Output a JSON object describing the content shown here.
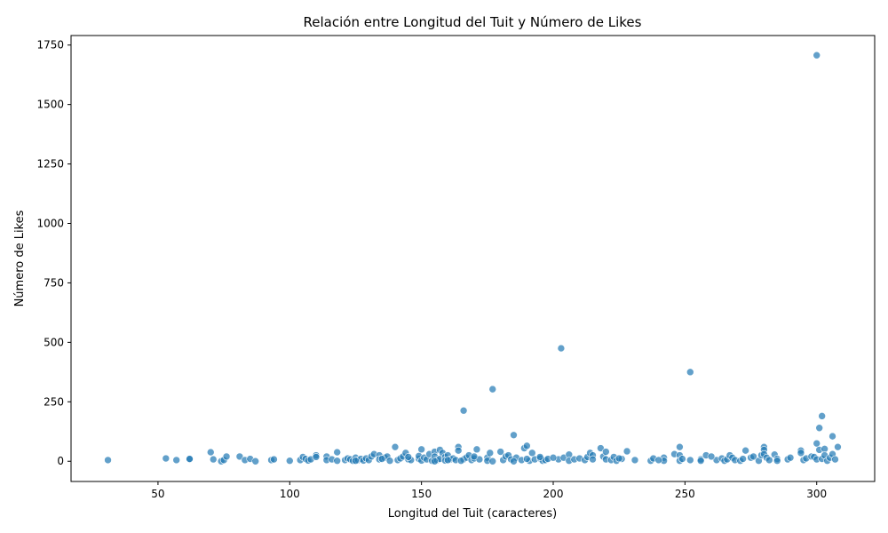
{
  "chart_data": {
    "type": "scatter",
    "title": "Relación entre Longitud del Tuit y Número de Likes",
    "xlabel": "Longitud del Tuit (caracteres)",
    "ylabel": "Número de Likes",
    "xlim": [
      17,
      322
    ],
    "ylim": [
      -85,
      1790
    ],
    "xticks": [
      50,
      100,
      150,
      200,
      250,
      300
    ],
    "yticks": [
      0,
      250,
      500,
      750,
      1000,
      1250,
      1500,
      1750
    ],
    "xtick_labels": [
      "50",
      "100",
      "150",
      "200",
      "250",
      "300"
    ],
    "ytick_labels": [
      "0",
      "250",
      "500",
      "750",
      "1000",
      "1250",
      "1500",
      "1750"
    ],
    "grid": false,
    "legend": false,
    "marker_color": "#1f77b4",
    "points": [
      [
        31,
        5
      ],
      [
        53,
        12
      ],
      [
        57,
        5
      ],
      [
        62,
        8
      ],
      [
        62,
        10
      ],
      [
        70,
        38
      ],
      [
        71,
        8
      ],
      [
        74,
        0
      ],
      [
        75,
        5
      ],
      [
        76,
        20
      ],
      [
        81,
        20
      ],
      [
        83,
        5
      ],
      [
        85,
        10
      ],
      [
        87,
        0
      ],
      [
        93,
        5
      ],
      [
        94,
        8
      ],
      [
        100,
        2
      ],
      [
        104,
        5
      ],
      [
        105,
        18
      ],
      [
        106,
        10
      ],
      [
        107,
        3
      ],
      [
        108,
        8
      ],
      [
        110,
        25
      ],
      [
        110,
        18
      ],
      [
        114,
        20
      ],
      [
        114,
        5
      ],
      [
        116,
        8
      ],
      [
        118,
        38
      ],
      [
        118,
        2
      ],
      [
        121,
        5
      ],
      [
        122,
        12
      ],
      [
        123,
        8
      ],
      [
        124,
        2
      ],
      [
        125,
        15
      ],
      [
        126,
        5
      ],
      [
        127,
        10
      ],
      [
        128,
        3
      ],
      [
        129,
        12
      ],
      [
        130,
        5
      ],
      [
        131,
        20
      ],
      [
        132,
        30
      ],
      [
        134,
        25
      ],
      [
        134,
        8
      ],
      [
        136,
        15
      ],
      [
        137,
        20
      ],
      [
        138,
        2
      ],
      [
        140,
        60
      ],
      [
        141,
        5
      ],
      [
        142,
        12
      ],
      [
        143,
        20
      ],
      [
        144,
        35
      ],
      [
        145,
        8
      ],
      [
        146,
        5
      ],
      [
        149,
        10
      ],
      [
        149,
        22
      ],
      [
        150,
        50
      ],
      [
        150,
        3
      ],
      [
        151,
        15
      ],
      [
        152,
        8
      ],
      [
        153,
        30
      ],
      [
        154,
        2
      ],
      [
        155,
        40
      ],
      [
        155,
        20
      ],
      [
        156,
        5
      ],
      [
        157,
        48
      ],
      [
        157,
        10
      ],
      [
        158,
        35
      ],
      [
        159,
        18
      ],
      [
        159,
        3
      ],
      [
        160,
        25
      ],
      [
        161,
        8
      ],
      [
        162,
        12
      ],
      [
        163,
        5
      ],
      [
        164,
        60
      ],
      [
        164,
        45
      ],
      [
        166,
        213
      ],
      [
        166,
        8
      ],
      [
        167,
        15
      ],
      [
        168,
        25
      ],
      [
        169,
        5
      ],
      [
        170,
        12
      ],
      [
        171,
        50
      ],
      [
        172,
        8
      ],
      [
        175,
        15
      ],
      [
        175,
        2
      ],
      [
        176,
        35
      ],
      [
        177,
        303
      ],
      [
        177,
        0
      ],
      [
        180,
        40
      ],
      [
        181,
        5
      ],
      [
        182,
        20
      ],
      [
        183,
        25
      ],
      [
        184,
        8
      ],
      [
        185,
        110
      ],
      [
        186,
        15
      ],
      [
        188,
        5
      ],
      [
        189,
        55
      ],
      [
        190,
        65
      ],
      [
        191,
        2
      ],
      [
        192,
        35
      ],
      [
        193,
        8
      ],
      [
        195,
        12
      ],
      [
        196,
        2
      ],
      [
        197,
        5
      ],
      [
        198,
        10
      ],
      [
        202,
        8
      ],
      [
        203,
        475
      ],
      [
        204,
        15
      ],
      [
        206,
        28
      ],
      [
        206,
        2
      ],
      [
        208,
        8
      ],
      [
        210,
        12
      ],
      [
        212,
        5
      ],
      [
        213,
        18
      ],
      [
        214,
        35
      ],
      [
        215,
        25
      ],
      [
        218,
        55
      ],
      [
        219,
        20
      ],
      [
        220,
        40
      ],
      [
        220,
        8
      ],
      [
        222,
        5
      ],
      [
        223,
        18
      ],
      [
        224,
        2
      ],
      [
        226,
        10
      ],
      [
        228,
        42
      ],
      [
        231,
        5
      ],
      [
        237,
        2
      ],
      [
        238,
        12
      ],
      [
        242,
        15
      ],
      [
        242,
        2
      ],
      [
        246,
        30
      ],
      [
        248,
        60
      ],
      [
        248,
        25
      ],
      [
        248,
        2
      ],
      [
        249,
        10
      ],
      [
        252,
        375
      ],
      [
        252,
        5
      ],
      [
        256,
        8
      ],
      [
        256,
        2
      ],
      [
        258,
        25
      ],
      [
        262,
        5
      ],
      [
        264,
        12
      ],
      [
        265,
        2
      ],
      [
        266,
        8
      ],
      [
        267,
        25
      ],
      [
        268,
        15
      ],
      [
        269,
        5
      ],
      [
        271,
        2
      ],
      [
        272,
        10
      ],
      [
        273,
        45
      ],
      [
        275,
        15
      ],
      [
        276,
        20
      ],
      [
        278,
        2
      ],
      [
        279,
        25
      ],
      [
        280,
        60
      ],
      [
        280,
        48
      ],
      [
        280,
        30
      ],
      [
        281,
        15
      ],
      [
        282,
        5
      ],
      [
        284,
        28
      ],
      [
        285,
        10
      ],
      [
        285,
        2
      ],
      [
        289,
        8
      ],
      [
        294,
        45
      ],
      [
        294,
        35
      ],
      [
        295,
        5
      ],
      [
        296,
        12
      ],
      [
        298,
        20
      ],
      [
        299,
        18
      ],
      [
        300,
        1707
      ],
      [
        300,
        75
      ],
      [
        300,
        8
      ],
      [
        301,
        140
      ],
      [
        301,
        48
      ],
      [
        302,
        190
      ],
      [
        302,
        10
      ],
      [
        303,
        52
      ],
      [
        303,
        25
      ],
      [
        304,
        2
      ],
      [
        305,
        15
      ],
      [
        306,
        105
      ],
      [
        306,
        30
      ],
      [
        307,
        8
      ],
      [
        308,
        60
      ],
      [
        145,
        18
      ],
      [
        160,
        5
      ],
      [
        170,
        20
      ],
      [
        190,
        10
      ],
      [
        200,
        15
      ],
      [
        215,
        8
      ],
      [
        240,
        5
      ],
      [
        260,
        20
      ],
      [
        290,
        15
      ],
      [
        125,
        2
      ],
      [
        135,
        10
      ],
      [
        155,
        0
      ],
      [
        165,
        2
      ],
      [
        185,
        0
      ],
      [
        195,
        18
      ],
      [
        225,
        12
      ]
    ]
  }
}
